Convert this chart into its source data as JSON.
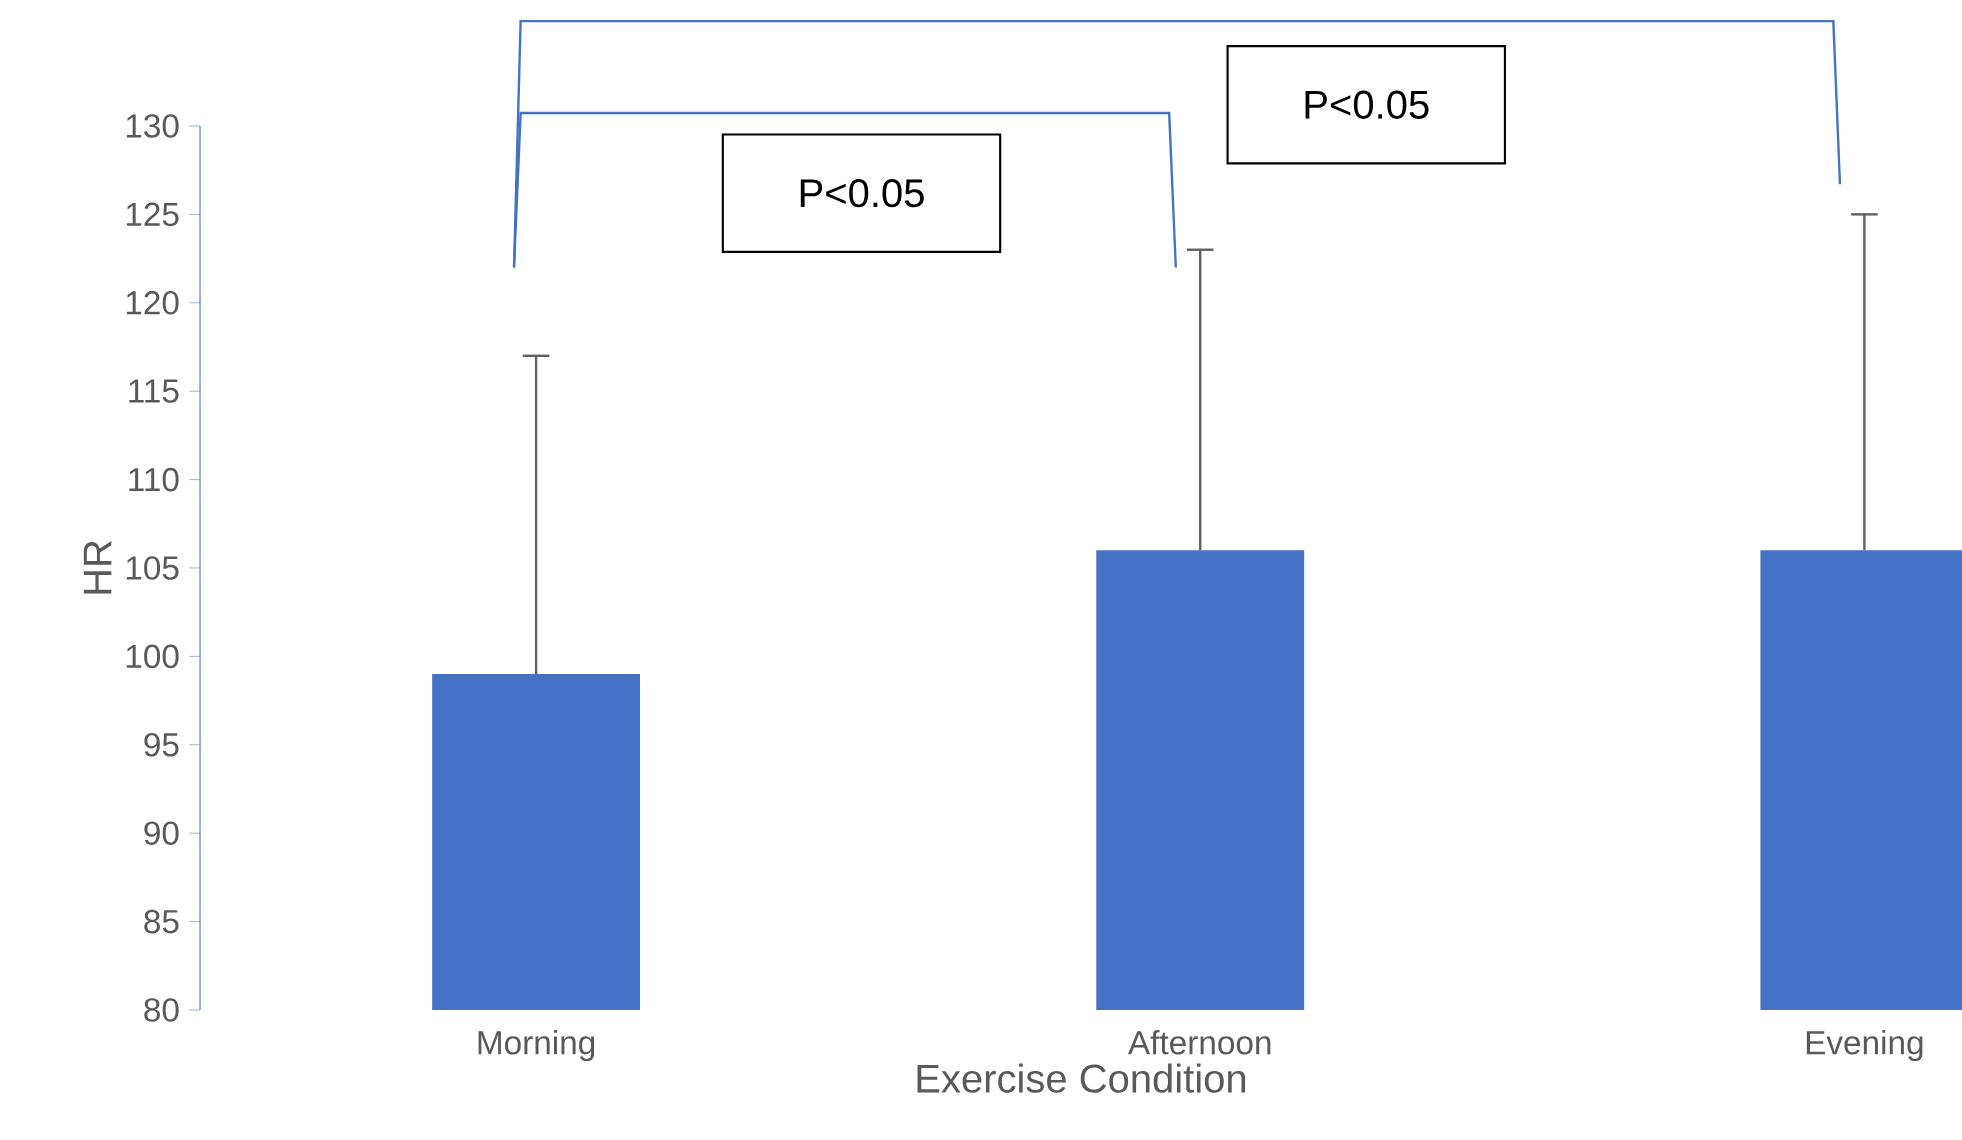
{
  "chart_data": {
    "type": "bar",
    "xlabel": "Exercise Condition",
    "ylabel": "HR",
    "categories": [
      "Morning",
      "Afternoon",
      "Evening"
    ],
    "values": [
      99,
      106,
      106
    ],
    "color": "#4472c4",
    "errors": [
      [
        99,
        117
      ],
      [
        106,
        123
      ],
      [
        106,
        125
      ]
    ],
    "ylim": [
      80,
      130
    ],
    "yticks": [
      80,
      85,
      90,
      95,
      100,
      105,
      110,
      115,
      120,
      125,
      130
    ],
    "grid": false,
    "annotations": [
      "P<0.05",
      "P<0.05"
    ]
  }
}
